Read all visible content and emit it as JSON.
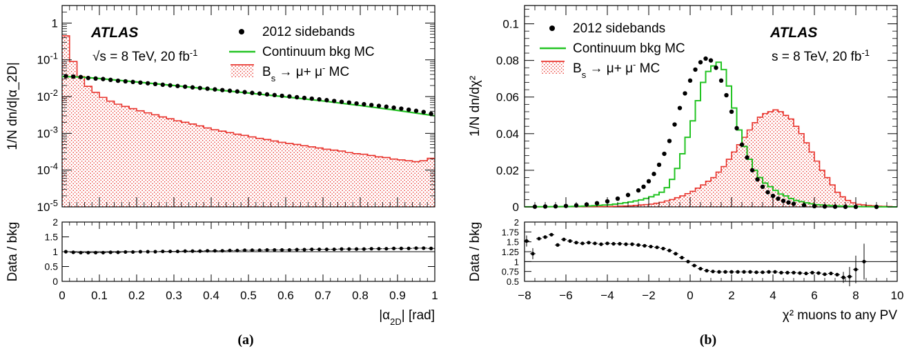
{
  "colors": {
    "data": "#000000",
    "continuum": "#22c322",
    "signal": "#e8312a",
    "signal_fill": "#f2a6a6"
  },
  "legend_entries": [
    "2012 sidebands",
    "Continuum bkg MC",
    "B_s → μ⁺ μ⁻ MC"
  ],
  "chart_data": [
    {
      "panel_label": "(a)",
      "type": "line",
      "main": {
        "ylabel": "1/N dn/d|α_2D|",
        "yscale": "log",
        "ylim": [
          1e-05,
          3
        ],
        "y_ticks": [
          "10^-5",
          "10^-4",
          "10^-3",
          "10^-2",
          "10^-1",
          "1"
        ],
        "atlas_label": "ATLAS",
        "energy_label": "√s = 8 TeV, 20 fb^-1",
        "legend": [
          "2012 sidebands",
          "Continuum bkg MC",
          "B_s → μ⁺ μ⁻ MC"
        ],
        "series": [
          {
            "name": "2012 sidebands",
            "style": "markers",
            "x": [
              0.01,
              0.03,
              0.05,
              0.07,
              0.09,
              0.11,
              0.13,
              0.15,
              0.17,
              0.19,
              0.21,
              0.23,
              0.25,
              0.27,
              0.29,
              0.31,
              0.33,
              0.35,
              0.37,
              0.39,
              0.41,
              0.43,
              0.45,
              0.47,
              0.49,
              0.51,
              0.53,
              0.55,
              0.57,
              0.59,
              0.61,
              0.63,
              0.65,
              0.67,
              0.69,
              0.71,
              0.73,
              0.75,
              0.77,
              0.79,
              0.81,
              0.83,
              0.85,
              0.87,
              0.89,
              0.91,
              0.93,
              0.95,
              0.97,
              0.99
            ],
            "y": [
              0.036,
              0.035,
              0.034,
              0.032,
              0.031,
              0.03,
              0.0285,
              0.027,
              0.026,
              0.025,
              0.024,
              0.023,
              0.022,
              0.021,
              0.0202,
              0.0194,
              0.0186,
              0.0178,
              0.0171,
              0.0164,
              0.0157,
              0.015,
              0.0144,
              0.0138,
              0.0132,
              0.0126,
              0.0121,
              0.0115,
              0.011,
              0.0105,
              0.0101,
              0.0096,
              0.0092,
              0.0088,
              0.0084,
              0.008,
              0.0076,
              0.0072,
              0.0069,
              0.0065,
              0.0062,
              0.0059,
              0.0056,
              0.0053,
              0.005,
              0.0047,
              0.0044,
              0.0041,
              0.0038,
              0.0034
            ]
          },
          {
            "name": "Continuum bkg MC",
            "style": "line",
            "x": [
              0,
              0.05,
              0.1,
              0.2,
              0.3,
              0.4,
              0.5,
              0.6,
              0.7,
              0.8,
              0.9,
              1.0
            ],
            "y": [
              0.035,
              0.034,
              0.031,
              0.025,
              0.02,
              0.0158,
              0.0125,
              0.0098,
              0.0076,
              0.0057,
              0.0042,
              0.003
            ]
          },
          {
            "name": "B_s → μ⁺ μ⁻ MC",
            "style": "filled-histogram",
            "bin_width": 0.02,
            "x": [
              0.0,
              0.02,
              0.04,
              0.06,
              0.08,
              0.1,
              0.12,
              0.14,
              0.16,
              0.18,
              0.2,
              0.22,
              0.24,
              0.26,
              0.28,
              0.3,
              0.32,
              0.34,
              0.36,
              0.38,
              0.4,
              0.42,
              0.44,
              0.46,
              0.48,
              0.5,
              0.52,
              0.54,
              0.56,
              0.58,
              0.6,
              0.62,
              0.64,
              0.66,
              0.68,
              0.7,
              0.72,
              0.74,
              0.76,
              0.78,
              0.8,
              0.82,
              0.84,
              0.86,
              0.88,
              0.9,
              0.92,
              0.94,
              0.96,
              0.98
            ],
            "y": [
              0.45,
              0.09,
              0.035,
              0.019,
              0.013,
              0.0095,
              0.0075,
              0.0062,
              0.0054,
              0.0047,
              0.0041,
              0.0036,
              0.0032,
              0.0028,
              0.0025,
              0.0022,
              0.002,
              0.0018,
              0.0016,
              0.0014,
              0.00125,
              0.00115,
              0.00105,
              0.00095,
              0.00088,
              0.0008,
              0.00073,
              0.00068,
              0.00062,
              0.00057,
              0.00053,
              0.0005,
              0.00046,
              0.00043,
              0.0004,
              0.00037,
              0.00035,
              0.00033,
              0.0003,
              0.00028,
              0.00027,
              0.00025,
              0.00023,
              0.00022,
              0.0002,
              0.00019,
              0.00018,
              0.00017,
              0.00018,
              0.00021
            ]
          }
        ]
      },
      "ratio": {
        "ylabel": "Data / bkg",
        "ylim": [
          0,
          2
        ],
        "y_ticks": [
          "0",
          "0.5",
          "1",
          "1.5",
          "2"
        ],
        "reference_line": 1,
        "x": [
          0.01,
          0.03,
          0.05,
          0.07,
          0.09,
          0.11,
          0.13,
          0.15,
          0.17,
          0.19,
          0.21,
          0.23,
          0.25,
          0.27,
          0.29,
          0.31,
          0.33,
          0.35,
          0.37,
          0.39,
          0.41,
          0.43,
          0.45,
          0.47,
          0.49,
          0.51,
          0.53,
          0.55,
          0.57,
          0.59,
          0.61,
          0.63,
          0.65,
          0.67,
          0.69,
          0.71,
          0.73,
          0.75,
          0.77,
          0.79,
          0.81,
          0.83,
          0.85,
          0.87,
          0.89,
          0.91,
          0.93,
          0.95,
          0.97,
          0.99
        ],
        "y": [
          1.0,
          0.98,
          0.97,
          0.97,
          0.97,
          0.97,
          0.98,
          0.98,
          0.99,
          0.99,
          1.0,
          1.0,
          1.0,
          1.01,
          1.01,
          1.01,
          1.02,
          1.02,
          1.02,
          1.03,
          1.03,
          1.03,
          1.04,
          1.04,
          1.05,
          1.05,
          1.05,
          1.06,
          1.06,
          1.06,
          1.06,
          1.07,
          1.07,
          1.08,
          1.08,
          1.08,
          1.08,
          1.09,
          1.09,
          1.09,
          1.09,
          1.1,
          1.1,
          1.1,
          1.11,
          1.11,
          1.11,
          1.12,
          1.12,
          1.11
        ]
      },
      "xlabel": "|α_2D| [rad]",
      "xlim": [
        0,
        1
      ],
      "x_ticks": [
        "0",
        "0.1",
        "0.2",
        "0.3",
        "0.4",
        "0.5",
        "0.6",
        "0.7",
        "0.8",
        "0.9",
        "1"
      ]
    },
    {
      "panel_label": "(b)",
      "type": "line",
      "main": {
        "ylabel": "1/N dn/dχ²",
        "yscale": "linear",
        "ylim": [
          0,
          0.11
        ],
        "y_ticks": [
          "0",
          "0.02",
          "0.04",
          "0.06",
          "0.08",
          "0.1"
        ],
        "atlas_label": "ATLAS",
        "energy_label": "s = 8 TeV, 20 fb^-1",
        "legend": [
          "2012 sidebands",
          "Continuum bkg MC",
          "B_s → μ⁺ μ⁻ MC"
        ],
        "series": [
          {
            "name": "2012 sidebands",
            "style": "markers",
            "x": [
              -7.5,
              -7.0,
              -6.5,
              -6.0,
              -5.5,
              -5.0,
              -4.5,
              -4.0,
              -3.5,
              -3.0,
              -2.5,
              -2.25,
              -2.0,
              -1.75,
              -1.5,
              -1.25,
              -1.0,
              -0.75,
              -0.5,
              -0.25,
              0.0,
              0.25,
              0.5,
              0.75,
              1.0,
              1.25,
              1.5,
              1.75,
              2.0,
              2.25,
              2.5,
              2.75,
              3.0,
              3.25,
              3.5,
              3.75,
              4.0,
              4.25,
              4.5,
              4.75,
              5.0,
              5.5,
              6.0,
              6.5,
              7.0,
              7.5,
              8.0,
              9.0
            ],
            "y": [
              0.0001,
              0.0002,
              0.0003,
              0.0005,
              0.0008,
              0.0013,
              0.002,
              0.003,
              0.0045,
              0.0065,
              0.009,
              0.011,
              0.014,
              0.018,
              0.023,
              0.029,
              0.036,
              0.045,
              0.054,
              0.062,
              0.069,
              0.075,
              0.079,
              0.081,
              0.08,
              0.076,
              0.069,
              0.061,
              0.052,
              0.043,
              0.034,
              0.027,
              0.02,
              0.015,
              0.011,
              0.008,
              0.006,
              0.0045,
              0.0033,
              0.0024,
              0.0017,
              0.0009,
              0.0004,
              0.0002,
              0.0001,
              5e-05,
              2e-05,
              0.0
            ]
          },
          {
            "name": "Continuum bkg MC",
            "style": "histogram-line",
            "bin_width": 0.25,
            "x": [
              -8.0,
              -7.0,
              -6.0,
              -5.0,
              -4.0,
              -3.5,
              -3.0,
              -2.5,
              -2.25,
              -2.0,
              -1.75,
              -1.5,
              -1.25,
              -1.0,
              -0.75,
              -0.5,
              -0.25,
              0.0,
              0.25,
              0.5,
              0.75,
              1.0,
              1.25,
              1.5,
              1.75,
              2.0,
              2.25,
              2.5,
              2.75,
              3.0,
              3.25,
              3.5,
              3.75,
              4.0,
              4.25,
              4.5,
              4.75,
              5.0,
              5.5,
              6.0,
              7.0,
              8.0,
              9.0,
              9.75
            ],
            "y": [
              5e-05,
              0.0001,
              0.0002,
              0.0005,
              0.0012,
              0.0018,
              0.0027,
              0.0038,
              0.0046,
              0.0055,
              0.0066,
              0.008,
              0.0105,
              0.015,
              0.021,
              0.029,
              0.038,
              0.047,
              0.058,
              0.068,
              0.074,
              0.077,
              0.079,
              0.075,
              0.066,
              0.054,
              0.042,
              0.033,
              0.026,
              0.02,
              0.016,
              0.013,
              0.011,
              0.009,
              0.007,
              0.006,
              0.0045,
              0.0035,
              0.0022,
              0.0012,
              0.0005,
              0.0002,
              5e-05,
              0.0
            ]
          },
          {
            "name": "B_s → μ⁺ μ⁻ MC",
            "style": "filled-histogram",
            "bin_width": 0.25,
            "x": [
              -8.0,
              -4.0,
              -3.0,
              -2.0,
              -1.5,
              -1.0,
              -0.5,
              0.0,
              0.5,
              1.0,
              1.25,
              1.5,
              1.75,
              2.0,
              2.25,
              2.5,
              2.75,
              3.0,
              3.25,
              3.5,
              3.75,
              4.0,
              4.25,
              4.5,
              4.75,
              5.0,
              5.25,
              5.5,
              5.75,
              6.0,
              6.25,
              6.5,
              6.75,
              7.0,
              7.25,
              7.5,
              7.75,
              8.0,
              8.5,
              9.0,
              9.5,
              9.75
            ],
            "y": [
              0.0,
              0.0002,
              0.0006,
              0.0015,
              0.0025,
              0.004,
              0.006,
              0.0085,
              0.012,
              0.016,
              0.019,
              0.022,
              0.026,
              0.03,
              0.034,
              0.038,
              0.042,
              0.046,
              0.049,
              0.051,
              0.052,
              0.053,
              0.052,
              0.05,
              0.048,
              0.044,
              0.04,
              0.035,
              0.03,
              0.025,
              0.02,
              0.016,
              0.012,
              0.008,
              0.0055,
              0.0035,
              0.0022,
              0.0014,
              0.0008,
              0.0004,
              0.0002,
              0.0
            ]
          }
        ]
      },
      "ratio": {
        "ylabel": "Data / bkg",
        "ylim": [
          0.5,
          2
        ],
        "y_ticks": [
          "0.5",
          "0.75",
          "1",
          "1.25",
          "1.5",
          "1.75",
          "2"
        ],
        "reference_line": 1,
        "x": [
          -7.9,
          -7.6,
          -7.3,
          -7.0,
          -6.7,
          -6.4,
          -6.1,
          -5.8,
          -5.5,
          -5.2,
          -4.9,
          -4.6,
          -4.3,
          -4.0,
          -3.7,
          -3.4,
          -3.1,
          -2.8,
          -2.5,
          -2.2,
          -1.9,
          -1.6,
          -1.3,
          -1.0,
          -0.7,
          -0.4,
          -0.1,
          0.2,
          0.5,
          0.8,
          1.1,
          1.4,
          1.7,
          2.0,
          2.3,
          2.6,
          2.9,
          3.2,
          3.5,
          3.8,
          4.1,
          4.4,
          4.7,
          5.0,
          5.3,
          5.6,
          5.9,
          6.2,
          6.5,
          6.8,
          7.1,
          7.4,
          7.7,
          8.0,
          8.4
        ],
        "y": [
          1.52,
          1.2,
          1.58,
          1.62,
          1.68,
          1.42,
          1.56,
          1.52,
          1.48,
          1.46,
          1.48,
          1.46,
          1.44,
          1.46,
          1.45,
          1.45,
          1.44,
          1.44,
          1.42,
          1.4,
          1.38,
          1.36,
          1.33,
          1.28,
          1.2,
          1.1,
          1.0,
          0.9,
          0.82,
          0.77,
          0.75,
          0.74,
          0.74,
          0.74,
          0.74,
          0.74,
          0.74,
          0.73,
          0.73,
          0.74,
          0.74,
          0.72,
          0.72,
          0.72,
          0.71,
          0.7,
          0.72,
          0.71,
          0.68,
          0.7,
          0.67,
          0.6,
          0.62,
          0.8,
          1.0
        ]
      },
      "xlabel": "χ² muons to any PV",
      "xlim": [
        -8,
        10
      ],
      "x_ticks": [
        "−8",
        "−6",
        "−4",
        "−2",
        "0",
        "2",
        "4",
        "6",
        "8",
        "10"
      ]
    }
  ]
}
